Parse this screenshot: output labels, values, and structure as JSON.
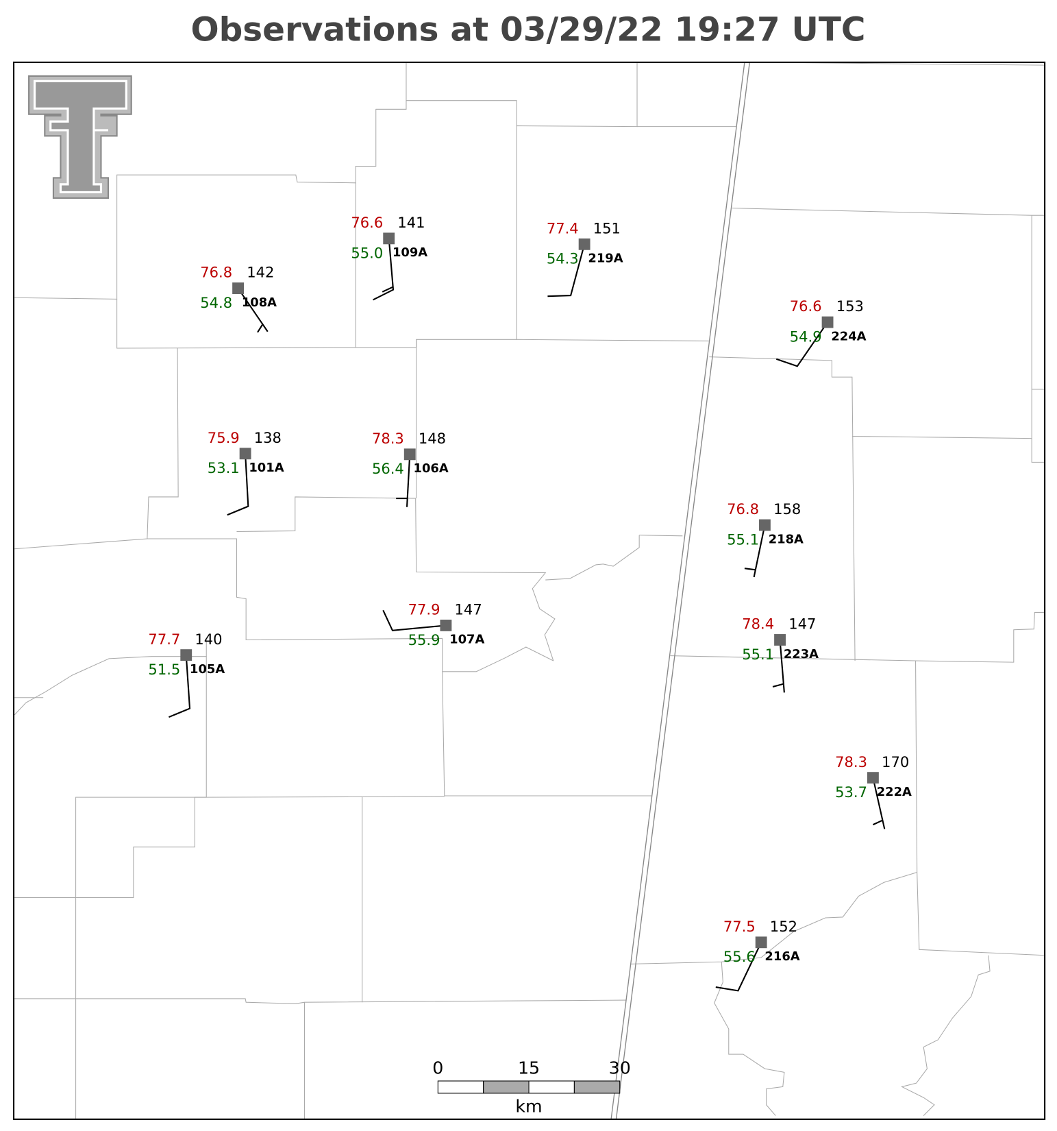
{
  "title": "Observations at 03/29/22 19:27 UTC",
  "stations": [
    {
      "id": "108A",
      "temperature": "76.8",
      "dewpoint": "54.8",
      "value": "142"
    },
    {
      "id": "109A",
      "temperature": "76.6",
      "dewpoint": "55.0",
      "value": "141"
    },
    {
      "id": "219A",
      "temperature": "77.4",
      "dewpoint": "54.3",
      "value": "151"
    },
    {
      "id": "224A",
      "temperature": "76.6",
      "dewpoint": "54.9",
      "value": "153"
    },
    {
      "id": "101A",
      "temperature": "75.9",
      "dewpoint": "53.1",
      "value": "138"
    },
    {
      "id": "106A",
      "temperature": "78.3",
      "dewpoint": "56.4",
      "value": "148"
    },
    {
      "id": "218A",
      "temperature": "76.8",
      "dewpoint": "55.1",
      "value": "158"
    },
    {
      "id": "107A",
      "temperature": "77.9",
      "dewpoint": "55.9",
      "value": "147"
    },
    {
      "id": "223A",
      "temperature": "78.4",
      "dewpoint": "55.1",
      "value": "147"
    },
    {
      "id": "105A",
      "temperature": "77.7",
      "dewpoint": "51.5",
      "value": "140"
    },
    {
      "id": "222A",
      "temperature": "78.3",
      "dewpoint": "53.7",
      "value": "170"
    },
    {
      "id": "216A",
      "temperature": "77.5",
      "dewpoint": "55.6",
      "value": "152"
    }
  ],
  "scale_bar": {
    "ticks": [
      "0",
      "15",
      "30"
    ],
    "unit": "km"
  }
}
